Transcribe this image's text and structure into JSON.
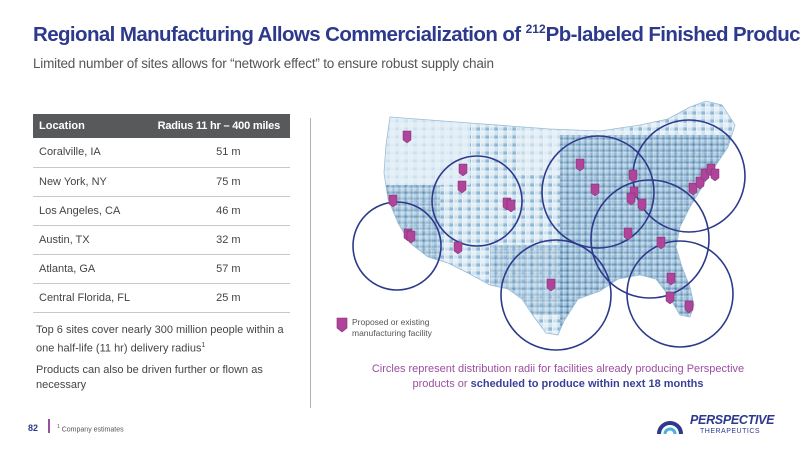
{
  "title": {
    "pre": "Regional Manufacturing Allows Commercialization of ",
    "sup": "212",
    "post": "Pb-labeled Finished Products"
  },
  "subtitle": "Limited number of sites allows for “network effect” to ensure robust supply chain",
  "table": {
    "headers": [
      "Location",
      "Radius 11 hr – 400 miles"
    ],
    "rows": [
      [
        "Coralville, IA",
        "51 m"
      ],
      [
        "New York, NY",
        "75 m"
      ],
      [
        "Los Angeles, CA",
        "46 m"
      ],
      [
        "Austin, TX",
        "32 m"
      ],
      [
        "Atlanta, GA",
        "57 m"
      ],
      [
        "Central Florida, FL",
        "25 m"
      ]
    ]
  },
  "notes": {
    "coverage": "Top 6 sites cover nearly 300 million people within a one half-life (11 hr) delivery radius",
    "coverage_sup": "1",
    "shipping": "Products can also be driven further or flown as necessary"
  },
  "legend": {
    "label": "Proposed or existing manufacturing facility",
    "icon": "facility-marker-icon"
  },
  "caption": {
    "plain": "Circles represent distribution radii for facilities already producing Perspective products or ",
    "bold": "scheduled to produce within next 18 months"
  },
  "footer": {
    "page_number": "82",
    "footnote_sup": "1",
    "footnote": "Company estimates"
  },
  "logo": {
    "name": "PERSPECTIVE",
    "sub": "THERAPEUTICS",
    "icon": "perspective-logo-icon"
  },
  "colors": {
    "title": "#2d3a8c",
    "accent": "#9b4fa0",
    "circle": "#2d3a8c",
    "marker": "#b0449a",
    "map_light": "#c9dfee",
    "map_dark": "#3c6e98"
  }
}
